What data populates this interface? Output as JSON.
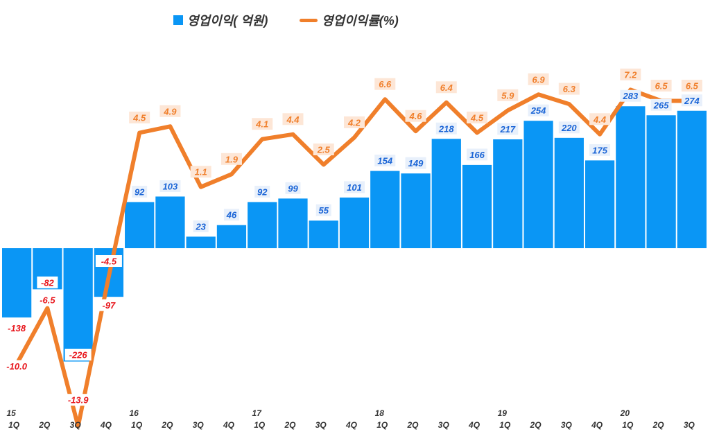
{
  "chart_data": {
    "type": "bar",
    "legend": {
      "bar_label": "영업이익( 억원)",
      "line_label": "영업이익률(%)"
    },
    "categories": [
      "1Q",
      "2Q",
      "3Q",
      "4Q",
      "1Q",
      "2Q",
      "3Q",
      "4Q",
      "1Q",
      "2Q",
      "3Q",
      "4Q",
      "1Q",
      "2Q",
      "3Q",
      "4Q",
      "1Q",
      "2Q",
      "3Q",
      "4Q",
      "1Q",
      "2Q",
      "3Q"
    ],
    "year_labels": [
      "15",
      "",
      "",
      "",
      "16",
      "",
      "",
      "",
      "17",
      "",
      "",
      "",
      "18",
      "",
      "",
      "",
      "19",
      "",
      "",
      "",
      "20",
      "",
      ""
    ],
    "series": [
      {
        "name": "영업이익( 억원)",
        "type": "bar",
        "values": [
          -138,
          -82,
          -226,
          -97,
          92,
          103,
          23,
          46,
          92,
          99,
          55,
          101,
          154,
          149,
          218,
          166,
          217,
          254,
          220,
          175,
          283,
          265,
          274
        ]
      },
      {
        "name": "영업이익률(%)",
        "type": "line",
        "values": [
          -10.0,
          -6.5,
          -13.9,
          -4.5,
          4.5,
          4.9,
          1.1,
          1.9,
          4.1,
          4.4,
          2.5,
          4.2,
          6.6,
          4.6,
          6.4,
          4.5,
          5.9,
          6.9,
          6.3,
          4.4,
          7.2,
          6.5,
          6.5
        ],
        "labels": [
          "-10.0",
          "-6.5",
          "-13.9",
          "-4.5",
          "4.5",
          "4.9",
          "1.1",
          "1.9",
          "4.1",
          "4.4",
          "2.5",
          "4.2",
          "6.6",
          "4.6",
          "6.4",
          "4.5",
          "5.9",
          "6.9",
          "6.3",
          "4.4",
          "7.2",
          "6.5",
          "6.5"
        ]
      }
    ],
    "colors": {
      "bar": "#0a96f5",
      "line": "#f07f2b",
      "bar_label_positive": "#1a64d6",
      "bar_label_negative": "#e8161c",
      "line_label_positive": "#f07f2b",
      "line_label_negative": "#e8161c"
    },
    "grid": false,
    "legend_position": "top-center"
  }
}
